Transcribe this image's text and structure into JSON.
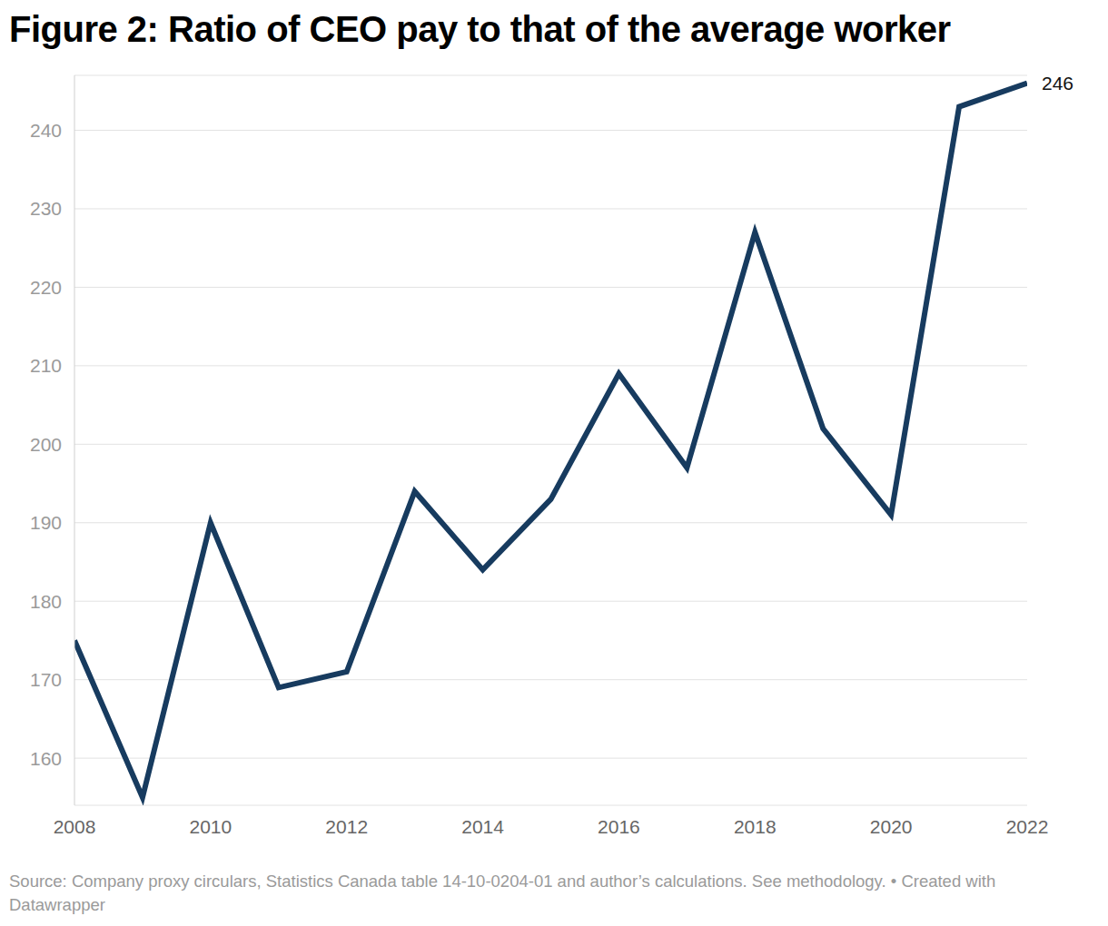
{
  "chart_data": {
    "type": "line",
    "title": "Figure 2: Ratio of CEO pay to that of the average worker",
    "source": "Source: Company proxy circulars, Statistics Canada table 14-10-0204-01 and author’s calculations. See methodology. • Created with Datawrapper",
    "x": [
      2008,
      2009,
      2010,
      2011,
      2012,
      2013,
      2014,
      2015,
      2016,
      2017,
      2018,
      2019,
      2020,
      2021,
      2022
    ],
    "series": [
      {
        "name": "Ratio of CEO pay to that of the average worker",
        "color": "#173b5f",
        "values": [
          175,
          155,
          190,
          169,
          171,
          194,
          184,
          193,
          209,
          197,
          227,
          202,
          191,
          243,
          246
        ]
      }
    ],
    "xlim": [
      2008,
      2022
    ],
    "xticks": [
      2008,
      2010,
      2012,
      2014,
      2016,
      2018,
      2020,
      2022
    ],
    "ylim": [
      154,
      247
    ],
    "yticks": [
      160,
      170,
      180,
      190,
      200,
      210,
      220,
      230,
      240
    ],
    "grid": true,
    "annotations": [
      {
        "text": "246",
        "x": 2022,
        "y": 246
      }
    ]
  }
}
